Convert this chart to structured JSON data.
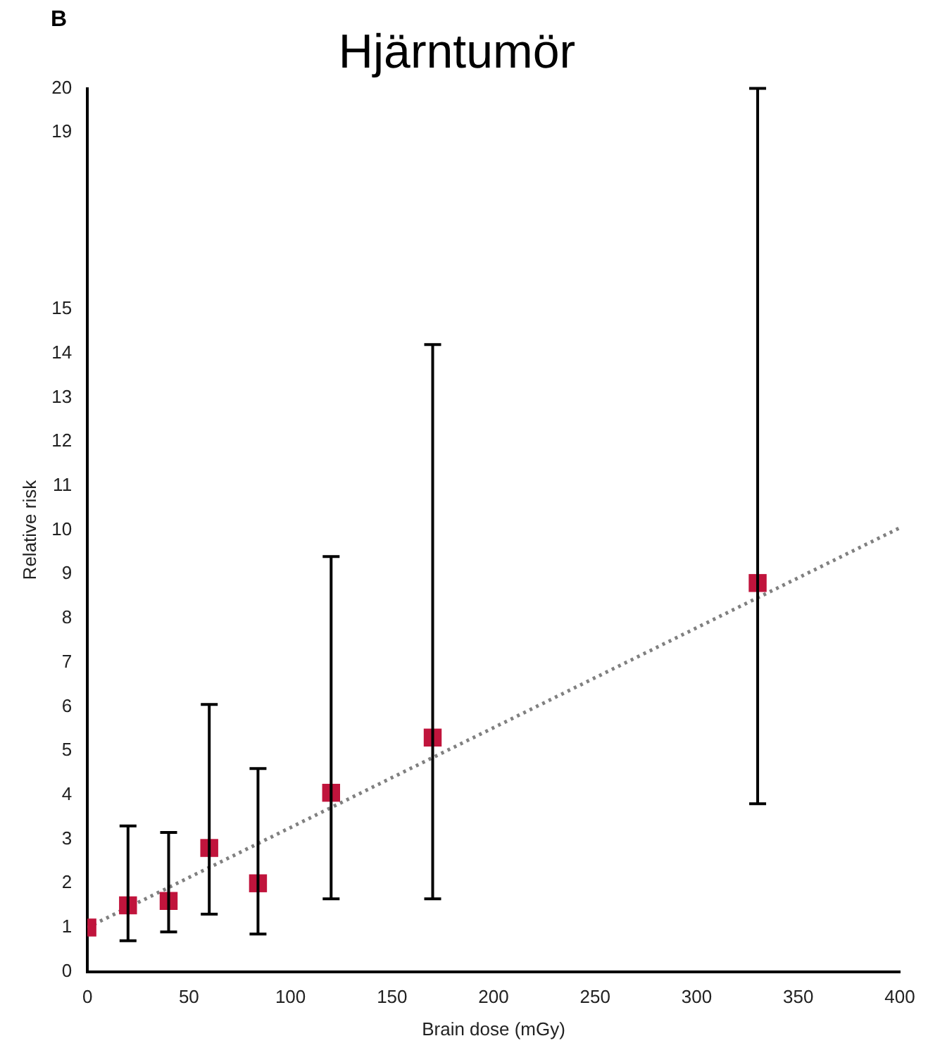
{
  "chart_data": {
    "type": "scatter",
    "title": "Hjärntumör",
    "xlabel": "Brain dose (mGy)",
    "ylabel": "Relative risk",
    "annotations": [
      "B"
    ],
    "series": [
      {
        "color": "#c0143c",
        "x": [
          0,
          20,
          40,
          60,
          84,
          120,
          170,
          330
        ],
        "values": [
          1.0,
          1.5,
          1.6,
          2.8,
          2.0,
          4.05,
          5.3,
          8.8
        ],
        "errors": [
          null,
          [
            0.7,
            3.3
          ],
          [
            0.9,
            3.15
          ],
          [
            1.3,
            6.05
          ],
          [
            0.85,
            4.6
          ],
          [
            1.65,
            9.4
          ],
          [
            1.65,
            14.2
          ],
          [
            3.8,
            20
          ]
        ]
      },
      {
        "type": "line",
        "color": "#808080",
        "x": [
          0,
          400
        ],
        "values": [
          1.0,
          10.05
        ],
        "line_style": "dotted",
        "marker": "none"
      }
    ],
    "marker": "square",
    "xlim": [
      0,
      400
    ],
    "xticks": [
      0,
      50,
      100,
      150,
      200,
      250,
      300,
      350,
      400
    ],
    "ylim": [
      0,
      20
    ],
    "yticks": [
      0,
      1,
      2,
      3,
      4,
      5,
      6,
      7,
      8,
      9,
      10,
      11,
      12,
      13,
      14,
      15,
      19,
      20
    ],
    "grid": false,
    "legend": false
  }
}
